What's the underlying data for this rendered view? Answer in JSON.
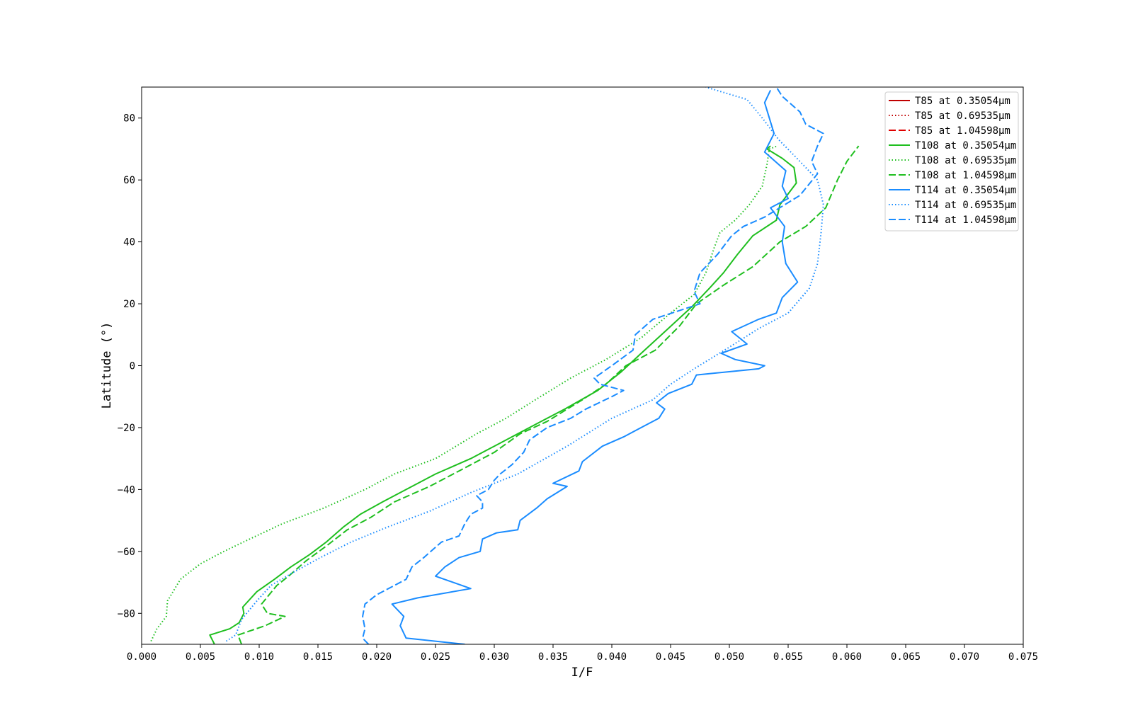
{
  "chart_data": {
    "type": "line",
    "title": "",
    "xlabel": "I/F",
    "ylabel": "Latitude (°)",
    "xlim": [
      0.0,
      0.075
    ],
    "ylim": [
      -90,
      90
    ],
    "x_ticks": [
      "0.000",
      "0.005",
      "0.010",
      "0.015",
      "0.020",
      "0.025",
      "0.030",
      "0.035",
      "0.040",
      "0.045",
      "0.050",
      "0.055",
      "0.060",
      "0.065",
      "0.070",
      "0.075"
    ],
    "x_tick_values": [
      0.0,
      0.005,
      0.01,
      0.015,
      0.02,
      0.025,
      0.03,
      0.035,
      0.04,
      0.045,
      0.05,
      0.055,
      0.06,
      0.065,
      0.07,
      0.075
    ],
    "y_ticks": [
      "−80",
      "−60",
      "−40",
      "−20",
      "0",
      "20",
      "40",
      "60",
      "80"
    ],
    "y_tick_values": [
      -80,
      -60,
      -40,
      -20,
      0,
      20,
      40,
      60,
      80
    ],
    "grid": false,
    "legend_position": "top-right",
    "series": [
      {
        "name": "T85 at 0.35054μm",
        "color": "#c00000",
        "dash": "solid",
        "points": []
      },
      {
        "name": "T85 at 0.69535μm",
        "color": "#c00000",
        "dash": "dotted",
        "points": []
      },
      {
        "name": "T85 at 1.04598μm",
        "color": "#e00000",
        "dash": "dashed",
        "points": []
      },
      {
        "name": "T108 at 0.35054μm",
        "color": "#1fbf1f",
        "dash": "solid",
        "points": [
          [
            0.0062,
            -90
          ],
          [
            0.0058,
            -87
          ],
          [
            0.0075,
            -85
          ],
          [
            0.0083,
            -83
          ],
          [
            0.0087,
            -80
          ],
          [
            0.0086,
            -78
          ],
          [
            0.0098,
            -73
          ],
          [
            0.0113,
            -69
          ],
          [
            0.0127,
            -65
          ],
          [
            0.0143,
            -61
          ],
          [
            0.0157,
            -57
          ],
          [
            0.0172,
            -52
          ],
          [
            0.0186,
            -48
          ],
          [
            0.0205,
            -44
          ],
          [
            0.0225,
            -40
          ],
          [
            0.025,
            -35
          ],
          [
            0.028,
            -30
          ],
          [
            0.03,
            -26
          ],
          [
            0.033,
            -20
          ],
          [
            0.036,
            -14
          ],
          [
            0.0388,
            -8
          ],
          [
            0.0408,
            -2
          ],
          [
            0.0425,
            4
          ],
          [
            0.0448,
            12
          ],
          [
            0.0468,
            19
          ],
          [
            0.0483,
            25
          ],
          [
            0.0495,
            30
          ],
          [
            0.0507,
            36
          ],
          [
            0.052,
            42
          ],
          [
            0.054,
            47
          ],
          [
            0.0543,
            52
          ],
          [
            0.0557,
            59
          ],
          [
            0.0555,
            64
          ],
          [
            0.0545,
            67
          ],
          [
            0.0532,
            70
          ],
          [
            0.0535,
            71
          ]
        ]
      },
      {
        "name": "T108 at 0.69535μm",
        "color": "#1fbf1f",
        "dash": "dotted",
        "points": [
          [
            0.0008,
            -89
          ],
          [
            0.0013,
            -85
          ],
          [
            0.0021,
            -81
          ],
          [
            0.0022,
            -76
          ],
          [
            0.0033,
            -69
          ],
          [
            0.005,
            -64
          ],
          [
            0.007,
            -60
          ],
          [
            0.0092,
            -56
          ],
          [
            0.012,
            -51
          ],
          [
            0.0155,
            -46
          ],
          [
            0.019,
            -40
          ],
          [
            0.0215,
            -35
          ],
          [
            0.025,
            -30
          ],
          [
            0.0285,
            -22
          ],
          [
            0.031,
            -17
          ],
          [
            0.0335,
            -11
          ],
          [
            0.0365,
            -4
          ],
          [
            0.0395,
            2
          ],
          [
            0.0425,
            9
          ],
          [
            0.045,
            17
          ],
          [
            0.047,
            23
          ],
          [
            0.048,
            30
          ],
          [
            0.0487,
            38
          ],
          [
            0.0492,
            43
          ],
          [
            0.0505,
            47
          ],
          [
            0.0517,
            52
          ],
          [
            0.0528,
            58
          ],
          [
            0.0532,
            65
          ],
          [
            0.0534,
            70
          ],
          [
            0.0541,
            71
          ]
        ]
      },
      {
        "name": "T108 at 1.04598μm",
        "color": "#1fbf1f",
        "dash": "dashed",
        "points": [
          [
            0.0085,
            -90
          ],
          [
            0.0082,
            -87
          ],
          [
            0.0105,
            -84
          ],
          [
            0.0122,
            -81
          ],
          [
            0.0107,
            -80
          ],
          [
            0.0102,
            -77
          ],
          [
            0.0115,
            -71
          ],
          [
            0.0125,
            -68
          ],
          [
            0.014,
            -63
          ],
          [
            0.0158,
            -58
          ],
          [
            0.0175,
            -53
          ],
          [
            0.0195,
            -49
          ],
          [
            0.0215,
            -44
          ],
          [
            0.0245,
            -39
          ],
          [
            0.027,
            -34
          ],
          [
            0.03,
            -28
          ],
          [
            0.0322,
            -22
          ],
          [
            0.0345,
            -18
          ],
          [
            0.0375,
            -11
          ],
          [
            0.0395,
            -6
          ],
          [
            0.0412,
            0
          ],
          [
            0.0437,
            5
          ],
          [
            0.0458,
            13
          ],
          [
            0.0472,
            20
          ],
          [
            0.0495,
            26
          ],
          [
            0.052,
            32
          ],
          [
            0.0543,
            40
          ],
          [
            0.0565,
            45
          ],
          [
            0.0582,
            51
          ],
          [
            0.0592,
            60
          ],
          [
            0.06,
            66
          ],
          [
            0.061,
            71
          ]
        ]
      },
      {
        "name": "T114 at 0.35054μm",
        "color": "#1a8cff",
        "dash": "solid",
        "points": [
          [
            0.0275,
            -90
          ],
          [
            0.0225,
            -88
          ],
          [
            0.022,
            -84
          ],
          [
            0.0223,
            -81
          ],
          [
            0.0213,
            -77
          ],
          [
            0.0235,
            -75
          ],
          [
            0.028,
            -72
          ],
          [
            0.025,
            -68
          ],
          [
            0.0258,
            -65
          ],
          [
            0.027,
            -62
          ],
          [
            0.0288,
            -60
          ],
          [
            0.029,
            -56
          ],
          [
            0.0302,
            -54
          ],
          [
            0.032,
            -53
          ],
          [
            0.0322,
            -50
          ],
          [
            0.0336,
            -46
          ],
          [
            0.0345,
            -43
          ],
          [
            0.0362,
            -39
          ],
          [
            0.035,
            -38
          ],
          [
            0.0372,
            -34
          ],
          [
            0.0375,
            -31
          ],
          [
            0.0392,
            -26
          ],
          [
            0.041,
            -23
          ],
          [
            0.0425,
            -20
          ],
          [
            0.044,
            -17
          ],
          [
            0.0445,
            -14
          ],
          [
            0.0438,
            -12
          ],
          [
            0.0448,
            -9
          ],
          [
            0.0468,
            -6
          ],
          [
            0.0472,
            -3
          ],
          [
            0.0525,
            -1
          ],
          [
            0.053,
            0
          ],
          [
            0.0505,
            2
          ],
          [
            0.0493,
            4
          ],
          [
            0.0515,
            7
          ],
          [
            0.0502,
            11
          ],
          [
            0.0525,
            15
          ],
          [
            0.054,
            17
          ],
          [
            0.0545,
            22
          ],
          [
            0.0558,
            27
          ],
          [
            0.0548,
            33
          ],
          [
            0.0545,
            40
          ],
          [
            0.0547,
            45
          ],
          [
            0.0535,
            51
          ],
          [
            0.055,
            54
          ],
          [
            0.0545,
            58
          ],
          [
            0.0548,
            63
          ],
          [
            0.053,
            69
          ],
          [
            0.0538,
            75
          ],
          [
            0.053,
            85
          ],
          [
            0.0535,
            89
          ]
        ]
      },
      {
        "name": "T114 at 0.69535μm",
        "color": "#1a8cff",
        "dash": "dotted",
        "points": [
          [
            0.0072,
            -89
          ],
          [
            0.008,
            -87
          ],
          [
            0.0085,
            -82
          ],
          [
            0.0098,
            -76
          ],
          [
            0.011,
            -71
          ],
          [
            0.0128,
            -67
          ],
          [
            0.0152,
            -62
          ],
          [
            0.0178,
            -57
          ],
          [
            0.021,
            -52
          ],
          [
            0.0245,
            -47
          ],
          [
            0.028,
            -41
          ],
          [
            0.032,
            -35
          ],
          [
            0.0362,
            -26
          ],
          [
            0.04,
            -17
          ],
          [
            0.0435,
            -11
          ],
          [
            0.045,
            -6
          ],
          [
            0.047,
            -1
          ],
          [
            0.05,
            6
          ],
          [
            0.0525,
            12
          ],
          [
            0.055,
            17
          ],
          [
            0.0568,
            25
          ],
          [
            0.0575,
            33
          ],
          [
            0.0578,
            43
          ],
          [
            0.058,
            52
          ],
          [
            0.0575,
            60
          ],
          [
            0.056,
            66
          ],
          [
            0.0542,
            73
          ],
          [
            0.0528,
            80
          ],
          [
            0.0515,
            86
          ],
          [
            0.048,
            90
          ]
        ]
      },
      {
        "name": "T114 at 1.04598μm",
        "color": "#1a8cff",
        "dash": "dashed",
        "points": [
          [
            0.0193,
            -90
          ],
          [
            0.0188,
            -88
          ],
          [
            0.019,
            -85
          ],
          [
            0.0188,
            -81
          ],
          [
            0.019,
            -77
          ],
          [
            0.02,
            -74
          ],
          [
            0.0225,
            -69
          ],
          [
            0.023,
            -65
          ],
          [
            0.024,
            -62
          ],
          [
            0.0255,
            -57
          ],
          [
            0.027,
            -55
          ],
          [
            0.0275,
            -51
          ],
          [
            0.028,
            -48
          ],
          [
            0.029,
            -46
          ],
          [
            0.029,
            -44
          ],
          [
            0.0285,
            -42
          ],
          [
            0.0295,
            -40
          ],
          [
            0.03,
            -37
          ],
          [
            0.0305,
            -35
          ],
          [
            0.0315,
            -32
          ],
          [
            0.0325,
            -28
          ],
          [
            0.033,
            -24
          ],
          [
            0.0345,
            -20
          ],
          [
            0.0365,
            -17
          ],
          [
            0.0378,
            -14
          ],
          [
            0.04,
            -10
          ],
          [
            0.041,
            -8
          ],
          [
            0.039,
            -6
          ],
          [
            0.0385,
            -4
          ],
          [
            0.04,
            0
          ],
          [
            0.0418,
            5
          ],
          [
            0.042,
            10
          ],
          [
            0.0435,
            15
          ],
          [
            0.0475,
            20
          ],
          [
            0.047,
            24
          ],
          [
            0.0475,
            30
          ],
          [
            0.049,
            36
          ],
          [
            0.0502,
            42
          ],
          [
            0.0512,
            45
          ],
          [
            0.053,
            48
          ],
          [
            0.056,
            55
          ],
          [
            0.0575,
            62
          ],
          [
            0.057,
            66
          ],
          [
            0.0575,
            71
          ],
          [
            0.058,
            75
          ],
          [
            0.0565,
            78
          ],
          [
            0.056,
            82
          ],
          [
            0.0545,
            87
          ],
          [
            0.054,
            90
          ]
        ]
      }
    ]
  }
}
